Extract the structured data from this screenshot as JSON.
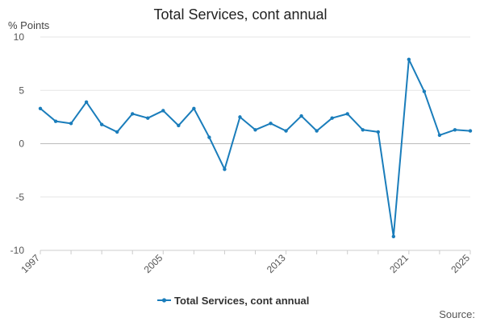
{
  "chart_data": {
    "type": "line",
    "title": "Total Services, cont annual",
    "ylabel": "% Points",
    "xlabel": "",
    "ylim": [
      -10,
      10
    ],
    "yticks": [
      10,
      5,
      0,
      -5,
      -10
    ],
    "xlim": [
      1997,
      2025
    ],
    "xticks": [
      1997,
      2005,
      2013,
      2021,
      2025
    ],
    "grid": true,
    "legend_position": "bottom",
    "series": [
      {
        "name": "Total Services, cont annual",
        "color": "#1a7dbb",
        "x": [
          1997,
          1998,
          1999,
          2000,
          2001,
          2002,
          2003,
          2004,
          2005,
          2006,
          2007,
          2008,
          2009,
          2010,
          2011,
          2012,
          2013,
          2014,
          2015,
          2016,
          2017,
          2018,
          2019,
          2020,
          2021,
          2022,
          2023,
          2024,
          2025
        ],
        "values": [
          3.3,
          2.1,
          1.9,
          3.9,
          1.8,
          1.1,
          2.8,
          2.4,
          3.1,
          1.7,
          3.3,
          0.6,
          -2.4,
          2.5,
          1.3,
          1.9,
          1.2,
          2.6,
          1.2,
          2.4,
          2.8,
          1.3,
          1.1,
          -8.7,
          7.9,
          4.9,
          0.8,
          1.3,
          1.2
        ]
      }
    ]
  },
  "source_label": "Source:"
}
